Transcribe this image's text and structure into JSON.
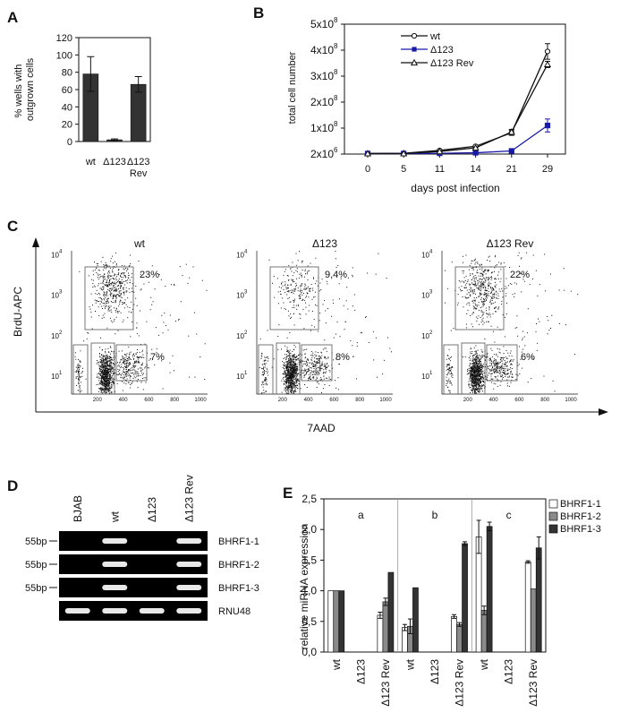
{
  "colors": {
    "ink": "#111111",
    "bar_dark": "#333333",
    "blue": "#1a1aa8",
    "gel_bg": "#000000",
    "band": "#e8e8e8",
    "gray_bar": "#8a8a8a",
    "white_bar": "#ffffff"
  },
  "panels": [
    "A",
    "B",
    "C",
    "D",
    "E"
  ],
  "chart_data": [
    {
      "panel": "A",
      "type": "bar",
      "ylabel": "% wells with outgrown cells",
      "ylabel_lines": [
        "% wells with",
        "outgrown cells"
      ],
      "ylim": [
        0,
        120
      ],
      "yticks": [
        0,
        20,
        40,
        60,
        80,
        100,
        120
      ],
      "categories": [
        "wt",
        "Δ123",
        "Δ123 Rev"
      ],
      "category_lines": [
        [
          "wt"
        ],
        [
          "Δ123"
        ],
        [
          "Δ123",
          "Rev"
        ]
      ],
      "values": [
        78,
        2,
        66
      ],
      "errors": [
        20,
        1,
        9
      ]
    },
    {
      "panel": "B",
      "type": "line",
      "xlabel": "days post infection",
      "ylabel": "total cell number",
      "x": [
        0,
        5,
        11,
        14,
        21,
        29
      ],
      "ytick_labels": [
        "2x10",
        "1x10",
        "2x10",
        "3x10",
        "4x10",
        "5x10"
      ],
      "ytick_exponents": [
        "6",
        "8",
        "8",
        "8",
        "8",
        "8"
      ],
      "ylim": [
        0,
        500000000
      ],
      "series": [
        {
          "name": "wt",
          "marker": "circle",
          "values": [
            2000000,
            3000000,
            14000000,
            30000000,
            82000000,
            395000000
          ],
          "errors": [
            1000000,
            1000000,
            3000000,
            4000000,
            10000000,
            30000000
          ]
        },
        {
          "name": "Δ123",
          "marker": "square",
          "values": [
            2000000,
            2000000,
            3000000,
            5000000,
            12000000,
            110000000
          ],
          "errors": [
            1000000,
            1000000,
            1000000,
            2000000,
            8000000,
            25000000
          ]
        },
        {
          "name": "Δ123 Rev",
          "marker": "triangle",
          "values": [
            2000000,
            2000000,
            10000000,
            24000000,
            85000000,
            345000000
          ],
          "errors": [
            1000000,
            1000000,
            3000000,
            3000000,
            10000000,
            12000000
          ]
        }
      ]
    },
    {
      "panel": "C",
      "type": "scatter",
      "xlabel": "7AAD",
      "ylabel": "BrdU-APC",
      "xticks": [
        200,
        400,
        600,
        800,
        1000
      ],
      "ytick_exponents": [
        "1",
        "2",
        "3",
        "4"
      ],
      "ytick_base": "10",
      "plots": [
        {
          "title": "wt",
          "upper_gate": "23%",
          "lower_gate": "7%"
        },
        {
          "title": "Δ123",
          "upper_gate": "9,4%",
          "lower_gate": "8%"
        },
        {
          "title": "Δ123 Rev",
          "upper_gate": "22%",
          "lower_gate": "6%"
        }
      ]
    },
    {
      "panel": "D",
      "type": "table",
      "lanes": [
        "BJAB",
        "wt",
        "Δ123",
        "Δ123 Rev"
      ],
      "rows": [
        {
          "label": "BHRF1-1",
          "marker": "55bp",
          "bands": [
            0,
            1,
            0,
            1
          ]
        },
        {
          "label": "BHRF1-2",
          "marker": "55bp",
          "bands": [
            0,
            1,
            0,
            1
          ]
        },
        {
          "label": "BHRF1-3",
          "marker": "55bp",
          "bands": [
            0,
            1,
            0,
            1
          ]
        },
        {
          "label": "RNU48",
          "marker": "",
          "bands": [
            1,
            1,
            1,
            1
          ]
        }
      ]
    },
    {
      "panel": "E",
      "type": "bar",
      "ylabel": "relative miRNA expression",
      "ylim": [
        0,
        2.5
      ],
      "ytick_labels": [
        "0,0",
        "0,5",
        "1,0",
        "1,5",
        "2,0",
        "2,5"
      ],
      "groups": [
        "a",
        "b",
        "c"
      ],
      "categories": [
        "wt",
        "Δ123",
        "Δ123 Rev"
      ],
      "series": [
        {
          "name": "BHRF1-1",
          "values": [
            [
              1.0,
              0.0,
              0.6
            ],
            [
              0.4,
              0.0,
              0.58
            ],
            [
              1.88,
              0.0,
              1.47
            ]
          ],
          "errors": [
            [
              0.0,
              0.0,
              0.05
            ],
            [
              0.05,
              0.0,
              0.03
            ],
            [
              0.27,
              0.0,
              0.02
            ]
          ]
        },
        {
          "name": "BHRF1-2",
          "values": [
            [
              1.0,
              0.0,
              0.82
            ],
            [
              0.42,
              0.0,
              0.45
            ],
            [
              0.68,
              0.0,
              1.03
            ]
          ],
          "errors": [
            [
              0.0,
              0.0,
              0.06
            ],
            [
              0.12,
              0.0,
              0.03
            ],
            [
              0.07,
              0.0,
              0.0
            ]
          ]
        },
        {
          "name": "BHRF1-3",
          "values": [
            [
              1.0,
              0.0,
              1.3
            ],
            [
              1.05,
              0.0,
              1.77
            ],
            [
              2.05,
              0.0,
              1.7
            ]
          ],
          "errors": [
            [
              0.0,
              0.0,
              0.0
            ],
            [
              0.0,
              0.0,
              0.03
            ],
            [
              0.07,
              0.0,
              0.18
            ]
          ]
        }
      ]
    }
  ]
}
